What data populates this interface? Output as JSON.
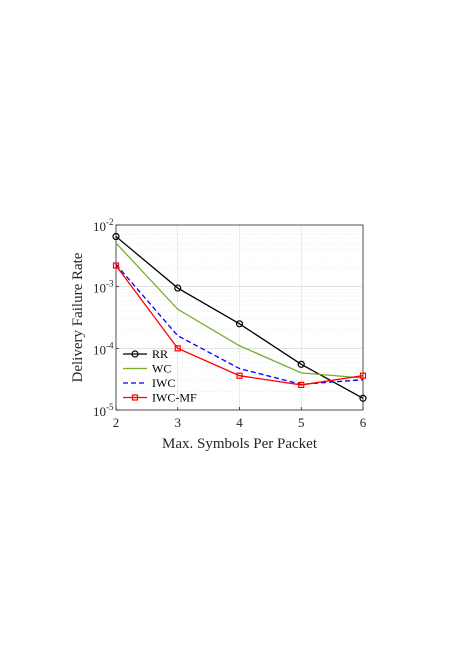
{
  "chart_data": {
    "type": "line",
    "xlabel": "Max. Symbols Per Packet",
    "ylabel": "Delivery Failure Rate",
    "xlim": [
      2,
      6
    ],
    "ylim": [
      1e-05,
      0.01
    ],
    "yscale": "log",
    "x_ticks": [
      "2",
      "3",
      "4",
      "5",
      "6"
    ],
    "y_ticks": [
      {
        "base": "10",
        "exp": "-5"
      },
      {
        "base": "10",
        "exp": "-4"
      },
      {
        "base": "10",
        "exp": "-3"
      },
      {
        "base": "10",
        "exp": "-2"
      }
    ],
    "grid": true,
    "legend_position": "bottom-left",
    "x": [
      2,
      3,
      4,
      5,
      6
    ],
    "series": [
      {
        "name": "RR",
        "values": [
          0.0065,
          0.00095,
          0.00025,
          5.5e-05,
          1.55e-05
        ],
        "color": "#000000",
        "marker": "circle",
        "dash": "solid"
      },
      {
        "name": "WC",
        "values": [
          0.0051,
          0.00043,
          0.00011,
          4e-05,
          3.3e-05
        ],
        "color": "#77ac30",
        "marker": "none",
        "dash": "solid"
      },
      {
        "name": "IWC",
        "values": [
          0.0023,
          0.00016,
          4.7e-05,
          2.6e-05,
          3.1e-05
        ],
        "color": "#0000ff",
        "marker": "none",
        "dash": "dashed"
      },
      {
        "name": "IWC-MF",
        "values": [
          0.0022,
          0.0001,
          3.6e-05,
          2.55e-05,
          3.6e-05
        ],
        "color": "#ff0000",
        "marker": "square",
        "dash": "solid"
      }
    ]
  }
}
